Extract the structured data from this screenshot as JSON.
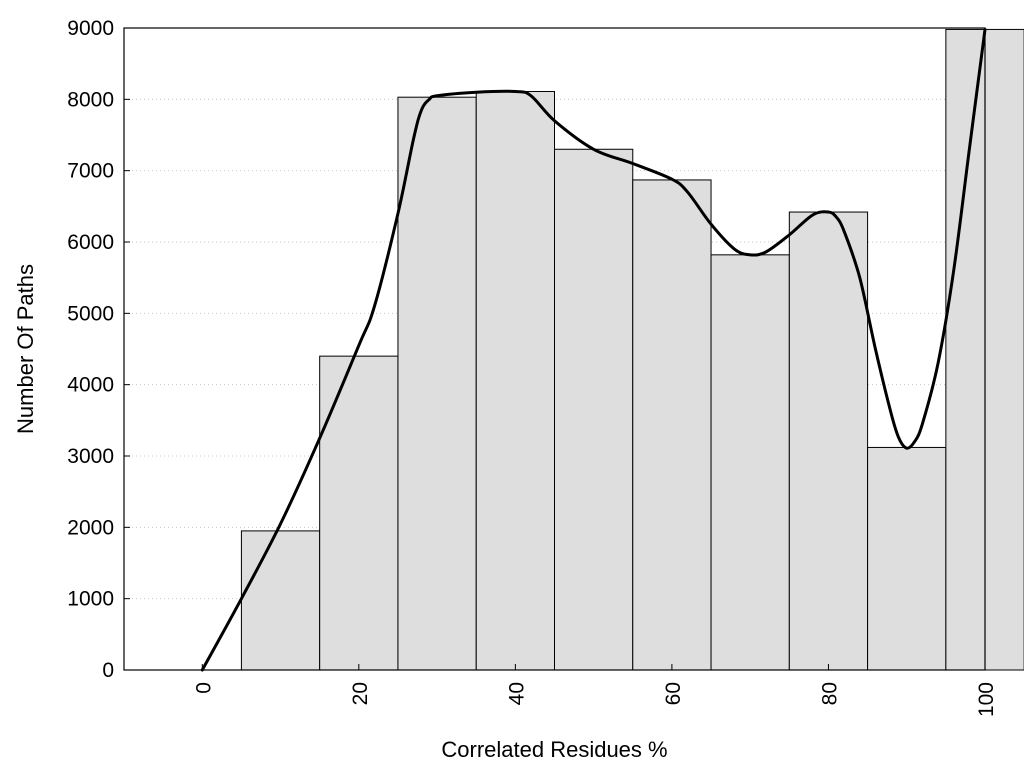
{
  "chart_data": {
    "type": "bar",
    "title": "",
    "xlabel": "Correlated Residues %",
    "ylabel": "Number Of Paths",
    "xlim": [
      -10,
      100
    ],
    "ylim": [
      0,
      9000
    ],
    "x_ticks": [
      0,
      20,
      40,
      60,
      80,
      100
    ],
    "y_ticks": [
      0,
      1000,
      2000,
      3000,
      4000,
      5000,
      6000,
      7000,
      8000,
      9000
    ],
    "grid": "horizontal dotted",
    "bar_color": "#dedede",
    "bars": [
      {
        "x": 10,
        "value": 1950
      },
      {
        "x": 20,
        "value": 4400
      },
      {
        "x": 30,
        "value": 8030
      },
      {
        "x": 40,
        "value": 8110
      },
      {
        "x": 50,
        "value": 7300
      },
      {
        "x": 60,
        "value": 6870
      },
      {
        "x": 70,
        "value": 5820
      },
      {
        "x": 80,
        "value": 6420
      },
      {
        "x": 90,
        "value": 3120
      },
      {
        "x": 100,
        "value": 8980
      }
    ],
    "bar_width": 10,
    "curve": {
      "x": [
        0,
        5,
        10,
        15,
        20,
        22,
        25,
        27,
        28,
        29,
        30,
        35,
        40,
        42,
        45,
        50,
        55,
        60,
        62,
        65,
        68,
        70,
        72,
        75,
        78,
        80,
        81,
        82,
        84,
        86,
        88,
        89,
        90,
        91,
        92,
        94,
        96,
        98,
        100
      ],
      "y": [
        0,
        1000,
        2050,
        3250,
        4550,
        5100,
        6400,
        7450,
        7850,
        8000,
        8050,
        8100,
        8110,
        8050,
        7700,
        7300,
        7100,
        6880,
        6700,
        6250,
        5900,
        5820,
        5860,
        6100,
        6380,
        6420,
        6350,
        6150,
        5500,
        4500,
        3600,
        3250,
        3110,
        3200,
        3450,
        4300,
        5600,
        7300,
        8980
      ]
    }
  }
}
